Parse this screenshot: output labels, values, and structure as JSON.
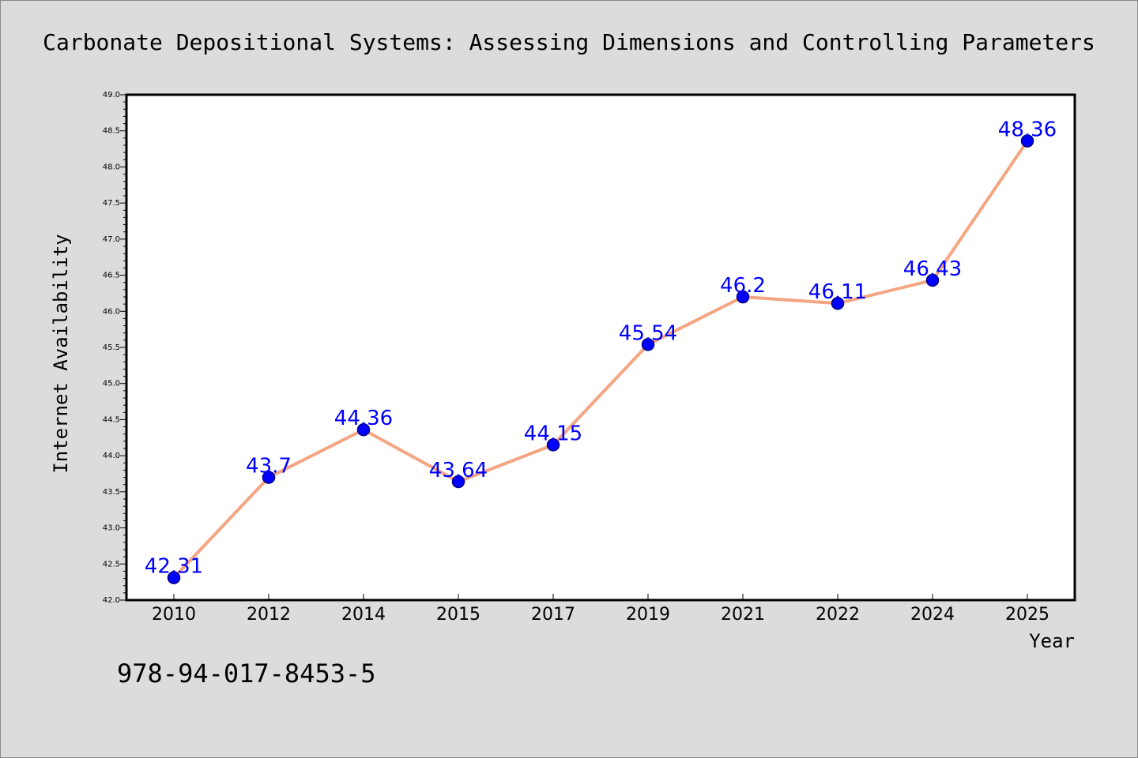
{
  "chart_data": {
    "type": "line",
    "title": "Carbonate Depositional Systems: Assessing Dimensions and Controlling Parameters",
    "xlabel": "Year",
    "ylabel": "Internet Availability",
    "categories": [
      "2010",
      "2012",
      "2014",
      "2015",
      "2017",
      "2019",
      "2021",
      "2022",
      "2024",
      "2025"
    ],
    "values": [
      42.31,
      43.7,
      44.36,
      43.64,
      44.15,
      45.54,
      46.2,
      46.11,
      46.43,
      48.36
    ],
    "data_labels": [
      "42.31",
      "43.7",
      "44.36",
      "43.64",
      "44.15",
      "45.54",
      "46.2",
      "46.11",
      "46.43",
      "48.36"
    ],
    "ylim": [
      42.0,
      49.0
    ],
    "yticks": [
      "42.0",
      "42.5",
      "43.0",
      "43.5",
      "44.0",
      "44.5",
      "45.0",
      "45.5",
      "46.0",
      "46.5",
      "47.0",
      "47.5",
      "48.0",
      "48.5",
      "49.0"
    ],
    "grid": false,
    "colors": {
      "line": "#f4a582",
      "marker": "#0000ff",
      "marker_edge": "#000080",
      "data_label": "#0000ff",
      "background": "#dcdcdc",
      "plot_background": "#ffffff"
    }
  },
  "footer": {
    "isbn": "978-94-017-8453-5"
  }
}
